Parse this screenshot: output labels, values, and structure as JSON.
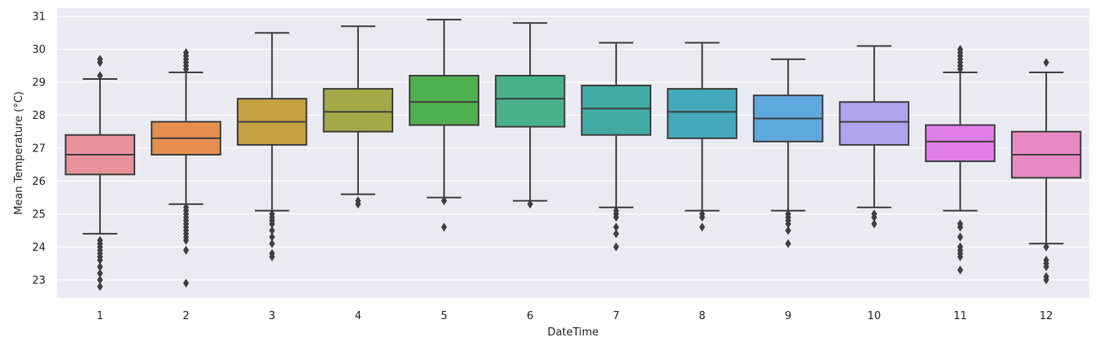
{
  "chart_data": {
    "type": "box",
    "xlabel": "DateTime",
    "ylabel": "Mean Temperature (°C)",
    "ylim": [
      22.45,
      31.25
    ],
    "yticks": [
      23,
      24,
      25,
      26,
      27,
      28,
      29,
      30,
      31
    ],
    "grid": true,
    "legend": "none",
    "categories": [
      "1",
      "2",
      "3",
      "4",
      "5",
      "6",
      "7",
      "8",
      "9",
      "10",
      "11",
      "12"
    ],
    "boxes": [
      {
        "category": "1",
        "color": "#E8919B",
        "whislo": 24.4,
        "q1": 26.2,
        "med": 26.8,
        "q3": 27.4,
        "whishi": 29.1,
        "fliers": [
          29.7,
          29.6,
          29.2,
          24.2,
          24.1,
          24.0,
          23.9,
          23.8,
          23.7,
          23.6,
          23.4,
          23.2,
          23.0,
          22.8
        ]
      },
      {
        "category": "2",
        "color": "#E58E4E",
        "whislo": 25.3,
        "q1": 26.8,
        "med": 27.3,
        "q3": 27.8,
        "whishi": 29.3,
        "fliers": [
          29.9,
          29.8,
          29.7,
          29.6,
          29.5,
          29.4,
          25.2,
          25.1,
          25.0,
          24.9,
          24.8,
          24.7,
          24.6,
          24.5,
          24.4,
          24.3,
          24.2,
          23.9,
          22.9
        ]
      },
      {
        "category": "3",
        "color": "#C5A040",
        "whislo": 25.1,
        "q1": 27.1,
        "med": 27.8,
        "q3": 28.5,
        "whishi": 30.5,
        "fliers": [
          25.0,
          24.9,
          24.8,
          24.7,
          24.5,
          24.3,
          24.1,
          23.8,
          23.7
        ]
      },
      {
        "category": "4",
        "color": "#A4A847",
        "whislo": 25.6,
        "q1": 27.5,
        "med": 28.1,
        "q3": 28.8,
        "whishi": 30.7,
        "fliers": [
          25.4,
          25.3
        ]
      },
      {
        "category": "5",
        "color": "#4EB04E",
        "whislo": 25.5,
        "q1": 27.7,
        "med": 28.4,
        "q3": 29.2,
        "whishi": 30.9,
        "fliers": [
          25.4,
          24.6
        ]
      },
      {
        "category": "6",
        "color": "#47B18A",
        "whislo": 25.4,
        "q1": 27.65,
        "med": 28.5,
        "q3": 29.2,
        "whishi": 30.8,
        "fliers": [
          25.3
        ]
      },
      {
        "category": "7",
        "color": "#40AAA2",
        "whislo": 25.2,
        "q1": 27.4,
        "med": 28.2,
        "q3": 28.9,
        "whishi": 30.2,
        "fliers": [
          25.1,
          25.0,
          24.9,
          24.6,
          24.4,
          24.0
        ]
      },
      {
        "category": "8",
        "color": "#45A9BE",
        "whislo": 25.1,
        "q1": 27.3,
        "med": 28.1,
        "q3": 28.8,
        "whishi": 30.2,
        "fliers": [
          25.0,
          24.9,
          24.6
        ]
      },
      {
        "category": "9",
        "color": "#5EA8E0",
        "whislo": 25.1,
        "q1": 27.2,
        "med": 27.9,
        "q3": 28.6,
        "whishi": 29.7,
        "fliers": [
          25.0,
          24.9,
          24.8,
          24.7,
          24.5,
          24.1
        ]
      },
      {
        "category": "10",
        "color": "#AFA3EE",
        "whislo": 25.2,
        "q1": 27.1,
        "med": 27.8,
        "q3": 28.4,
        "whishi": 30.1,
        "fliers": [
          25.0,
          24.9,
          24.7
        ]
      },
      {
        "category": "11",
        "color": "#E17EE8",
        "whislo": 25.1,
        "q1": 26.6,
        "med": 27.2,
        "q3": 27.7,
        "whishi": 29.3,
        "fliers": [
          30.0,
          29.9,
          29.8,
          29.7,
          29.6,
          29.5,
          29.4,
          24.7,
          24.6,
          24.3,
          24.0,
          23.9,
          23.8,
          23.7,
          23.3
        ]
      },
      {
        "category": "12",
        "color": "#E889C3",
        "whislo": 24.1,
        "q1": 26.1,
        "med": 26.8,
        "q3": 27.5,
        "whishi": 29.3,
        "fliers": [
          29.6,
          24.0,
          23.6,
          23.5,
          23.4,
          23.1,
          23.0
        ]
      }
    ]
  }
}
